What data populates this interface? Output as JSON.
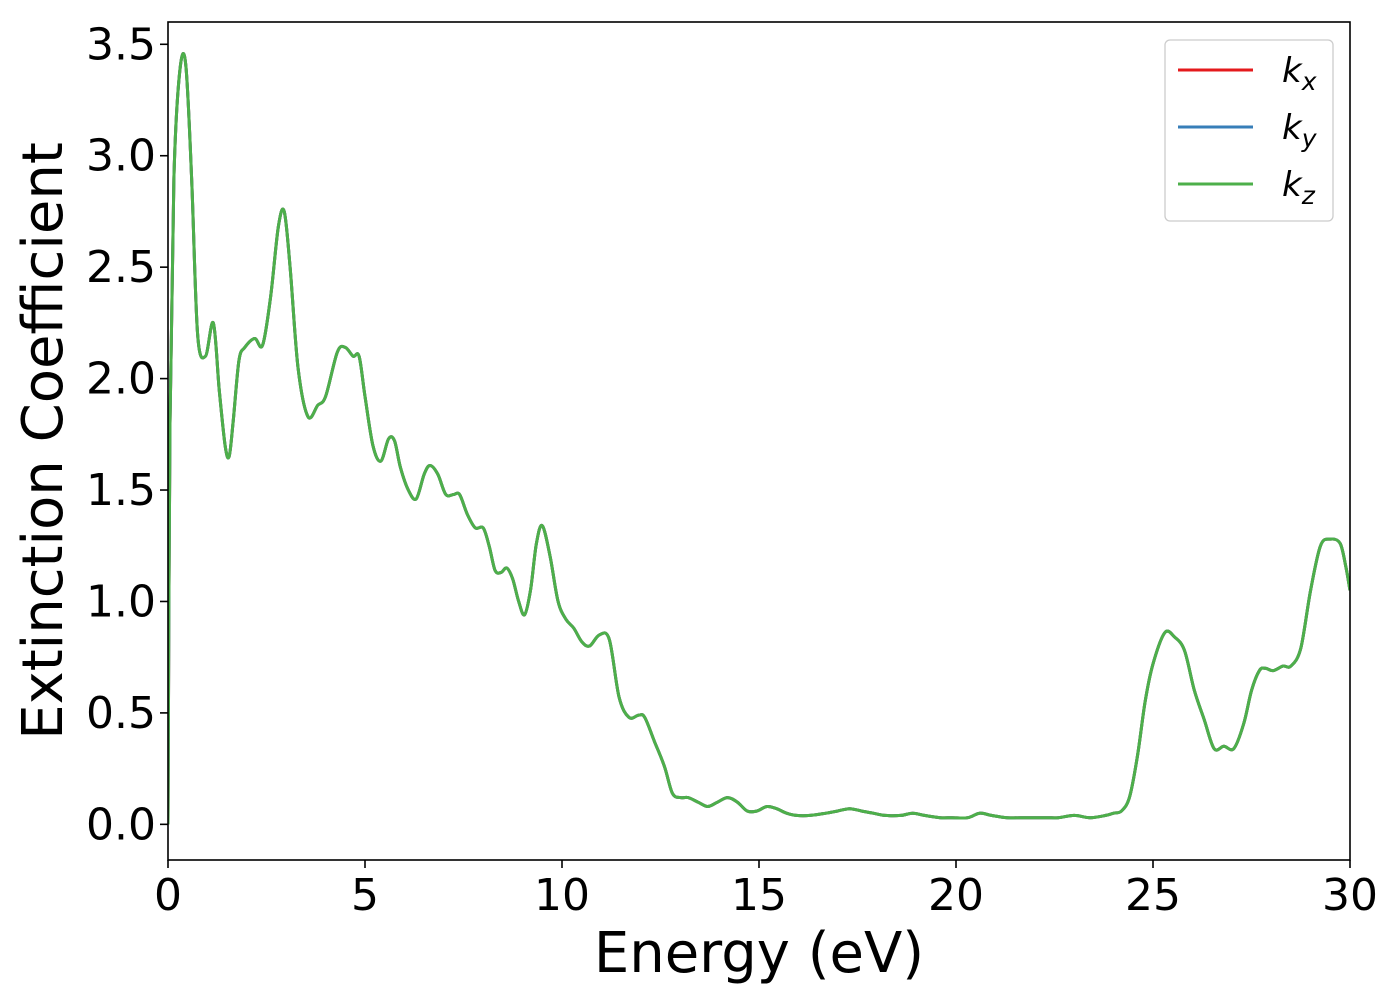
{
  "chart_data": {
    "type": "line",
    "title": "",
    "xlabel": "Energy (eV)",
    "ylabel": "Extinction Coefficient",
    "xlim": [
      0,
      30
    ],
    "ylim": [
      -0.16,
      3.6
    ],
    "xticks": [
      0,
      5,
      10,
      15,
      20,
      25,
      30
    ],
    "xtick_labels": [
      "0",
      "5",
      "10",
      "15",
      "20",
      "25",
      "30"
    ],
    "yticks": [
      0.0,
      0.5,
      1.0,
      1.5,
      2.0,
      2.5,
      3.0,
      3.5
    ],
    "ytick_labels": [
      "0.0",
      "0.5",
      "1.0",
      "1.5",
      "2.0",
      "2.5",
      "3.0",
      "3.5"
    ],
    "grid": false,
    "legend_position": "top-right",
    "series": [
      {
        "name": "k",
        "subscript": "x",
        "color": "#e41a1c",
        "x": [
          0,
          0.05,
          0.15,
          0.3,
          0.45,
          0.6,
          0.75,
          0.95,
          1.15,
          1.3,
          1.45,
          1.55,
          1.65,
          1.8,
          1.95,
          2.2,
          2.4,
          2.6,
          2.8,
          2.95,
          3.1,
          3.3,
          3.55,
          3.8,
          4.0,
          4.3,
          4.5,
          4.7,
          4.85,
          5.0,
          5.2,
          5.4,
          5.6,
          5.75,
          5.9,
          6.1,
          6.3,
          6.5,
          6.65,
          6.85,
          7.05,
          7.25,
          7.4,
          7.6,
          7.8,
          8.0,
          8.15,
          8.3,
          8.45,
          8.6,
          8.75,
          8.9,
          9.05,
          9.2,
          9.35,
          9.5,
          9.7,
          9.9,
          10.1,
          10.3,
          10.5,
          10.7,
          10.95,
          11.2,
          11.45,
          11.7,
          11.95,
          12.1,
          12.35,
          12.6,
          12.8,
          13.0,
          13.2,
          13.45,
          13.7,
          13.95,
          14.2,
          14.45,
          14.7,
          14.95,
          15.2,
          15.45,
          15.7,
          15.95,
          16.3,
          16.7,
          17.0,
          17.3,
          17.6,
          17.9,
          18.2,
          18.6,
          18.9,
          19.2,
          19.6,
          19.9,
          20.3,
          20.6,
          20.9,
          21.3,
          21.8,
          22.3,
          22.6,
          23.0,
          23.4,
          23.8,
          24.0,
          24.2,
          24.4,
          24.6,
          24.8,
          25.0,
          25.3,
          25.55,
          25.8,
          26.05,
          26.3,
          26.55,
          26.8,
          27.05,
          27.3,
          27.5,
          27.7,
          27.85,
          28.05,
          28.3,
          28.5,
          28.75,
          29.0,
          29.25,
          29.5,
          29.75,
          29.9,
          30.0
        ],
        "y": [
          0.0,
          1.8,
          2.9,
          3.38,
          3.41,
          2.9,
          2.2,
          2.1,
          2.25,
          1.95,
          1.7,
          1.65,
          1.8,
          2.08,
          2.14,
          2.18,
          2.15,
          2.36,
          2.68,
          2.75,
          2.5,
          2.05,
          1.83,
          1.88,
          1.92,
          2.12,
          2.14,
          2.1,
          2.1,
          1.92,
          1.7,
          1.63,
          1.73,
          1.72,
          1.6,
          1.5,
          1.46,
          1.57,
          1.61,
          1.57,
          1.48,
          1.48,
          1.48,
          1.39,
          1.33,
          1.33,
          1.25,
          1.14,
          1.13,
          1.15,
          1.1,
          1.0,
          0.94,
          1.05,
          1.26,
          1.34,
          1.2,
          1.0,
          0.92,
          0.88,
          0.82,
          0.8,
          0.85,
          0.83,
          0.57,
          0.48,
          0.49,
          0.48,
          0.37,
          0.26,
          0.14,
          0.12,
          0.12,
          0.1,
          0.08,
          0.1,
          0.12,
          0.1,
          0.06,
          0.06,
          0.08,
          0.07,
          0.05,
          0.04,
          0.04,
          0.05,
          0.06,
          0.07,
          0.06,
          0.05,
          0.04,
          0.04,
          0.05,
          0.04,
          0.03,
          0.03,
          0.03,
          0.05,
          0.04,
          0.03,
          0.03,
          0.03,
          0.03,
          0.04,
          0.03,
          0.04,
          0.05,
          0.06,
          0.12,
          0.3,
          0.55,
          0.72,
          0.86,
          0.84,
          0.78,
          0.6,
          0.47,
          0.34,
          0.35,
          0.34,
          0.45,
          0.6,
          0.69,
          0.7,
          0.69,
          0.71,
          0.71,
          0.79,
          1.05,
          1.25,
          1.28,
          1.26,
          1.15,
          1.05
        ]
      },
      {
        "name": "k",
        "subscript": "y",
        "color": "#377eb8",
        "x": [
          0,
          0.05,
          0.15,
          0.3,
          0.45,
          0.6,
          0.75,
          0.95,
          1.15,
          1.3,
          1.45,
          1.55,
          1.65,
          1.8,
          1.95,
          2.2,
          2.4,
          2.6,
          2.8,
          2.95,
          3.1,
          3.3,
          3.55,
          3.8,
          4.0,
          4.3,
          4.5,
          4.7,
          4.85,
          5.0,
          5.2,
          5.4,
          5.6,
          5.75,
          5.9,
          6.1,
          6.3,
          6.5,
          6.65,
          6.85,
          7.05,
          7.25,
          7.4,
          7.6,
          7.8,
          8.0,
          8.15,
          8.3,
          8.45,
          8.6,
          8.75,
          8.9,
          9.05,
          9.2,
          9.35,
          9.5,
          9.7,
          9.9,
          10.1,
          10.3,
          10.5,
          10.7,
          10.95,
          11.2,
          11.45,
          11.7,
          11.95,
          12.1,
          12.35,
          12.6,
          12.8,
          13.0,
          13.2,
          13.45,
          13.7,
          13.95,
          14.2,
          14.45,
          14.7,
          14.95,
          15.2,
          15.45,
          15.7,
          15.95,
          16.3,
          16.7,
          17.0,
          17.3,
          17.6,
          17.9,
          18.2,
          18.6,
          18.9,
          19.2,
          19.6,
          19.9,
          20.3,
          20.6,
          20.9,
          21.3,
          21.8,
          22.3,
          22.6,
          23.0,
          23.4,
          23.8,
          24.0,
          24.2,
          24.4,
          24.6,
          24.8,
          25.0,
          25.3,
          25.55,
          25.8,
          26.05,
          26.3,
          26.55,
          26.8,
          27.05,
          27.3,
          27.5,
          27.7,
          27.85,
          28.05,
          28.3,
          28.5,
          28.75,
          29.0,
          29.25,
          29.5,
          29.75,
          29.9,
          30.0
        ],
        "y": [
          0.0,
          1.8,
          2.9,
          3.38,
          3.41,
          2.9,
          2.2,
          2.1,
          2.25,
          1.95,
          1.7,
          1.65,
          1.8,
          2.08,
          2.14,
          2.18,
          2.15,
          2.36,
          2.68,
          2.75,
          2.5,
          2.05,
          1.83,
          1.88,
          1.92,
          2.12,
          2.14,
          2.1,
          2.1,
          1.92,
          1.7,
          1.63,
          1.73,
          1.72,
          1.6,
          1.5,
          1.46,
          1.57,
          1.61,
          1.57,
          1.48,
          1.48,
          1.48,
          1.39,
          1.33,
          1.33,
          1.25,
          1.14,
          1.13,
          1.15,
          1.1,
          1.0,
          0.94,
          1.05,
          1.26,
          1.34,
          1.2,
          1.0,
          0.92,
          0.88,
          0.82,
          0.8,
          0.85,
          0.83,
          0.57,
          0.48,
          0.49,
          0.48,
          0.37,
          0.26,
          0.14,
          0.12,
          0.12,
          0.1,
          0.08,
          0.1,
          0.12,
          0.1,
          0.06,
          0.06,
          0.08,
          0.07,
          0.05,
          0.04,
          0.04,
          0.05,
          0.06,
          0.07,
          0.06,
          0.05,
          0.04,
          0.04,
          0.05,
          0.04,
          0.03,
          0.03,
          0.03,
          0.05,
          0.04,
          0.03,
          0.03,
          0.03,
          0.03,
          0.04,
          0.03,
          0.04,
          0.05,
          0.06,
          0.12,
          0.3,
          0.55,
          0.72,
          0.86,
          0.84,
          0.78,
          0.6,
          0.47,
          0.34,
          0.35,
          0.34,
          0.45,
          0.6,
          0.69,
          0.7,
          0.69,
          0.71,
          0.71,
          0.79,
          1.05,
          1.25,
          1.28,
          1.26,
          1.15,
          1.05
        ]
      },
      {
        "name": "k",
        "subscript": "z",
        "color": "#4daf4a",
        "x": [
          0,
          0.05,
          0.15,
          0.3,
          0.45,
          0.6,
          0.75,
          0.95,
          1.15,
          1.3,
          1.45,
          1.55,
          1.65,
          1.8,
          1.95,
          2.2,
          2.4,
          2.6,
          2.8,
          2.95,
          3.1,
          3.3,
          3.55,
          3.8,
          4.0,
          4.3,
          4.5,
          4.7,
          4.85,
          5.0,
          5.2,
          5.4,
          5.6,
          5.75,
          5.9,
          6.1,
          6.3,
          6.5,
          6.65,
          6.85,
          7.05,
          7.25,
          7.4,
          7.6,
          7.8,
          8.0,
          8.15,
          8.3,
          8.45,
          8.6,
          8.75,
          8.9,
          9.05,
          9.2,
          9.35,
          9.5,
          9.7,
          9.9,
          10.1,
          10.3,
          10.5,
          10.7,
          10.95,
          11.2,
          11.45,
          11.7,
          11.95,
          12.1,
          12.35,
          12.6,
          12.8,
          13.0,
          13.2,
          13.45,
          13.7,
          13.95,
          14.2,
          14.45,
          14.7,
          14.95,
          15.2,
          15.45,
          15.7,
          15.95,
          16.3,
          16.7,
          17.0,
          17.3,
          17.6,
          17.9,
          18.2,
          18.6,
          18.9,
          19.2,
          19.6,
          19.9,
          20.3,
          20.6,
          20.9,
          21.3,
          21.8,
          22.3,
          22.6,
          23.0,
          23.4,
          23.8,
          24.0,
          24.2,
          24.4,
          24.6,
          24.8,
          25.0,
          25.3,
          25.55,
          25.8,
          26.05,
          26.3,
          26.55,
          26.8,
          27.05,
          27.3,
          27.5,
          27.7,
          27.85,
          28.05,
          28.3,
          28.5,
          28.75,
          29.0,
          29.25,
          29.5,
          29.75,
          29.9,
          30.0
        ],
        "y": [
          0.0,
          1.8,
          2.9,
          3.38,
          3.41,
          2.9,
          2.2,
          2.1,
          2.25,
          1.95,
          1.7,
          1.65,
          1.8,
          2.08,
          2.14,
          2.18,
          2.15,
          2.36,
          2.68,
          2.75,
          2.5,
          2.05,
          1.83,
          1.88,
          1.92,
          2.12,
          2.14,
          2.1,
          2.1,
          1.92,
          1.7,
          1.63,
          1.73,
          1.72,
          1.6,
          1.5,
          1.46,
          1.57,
          1.61,
          1.57,
          1.48,
          1.48,
          1.48,
          1.39,
          1.33,
          1.33,
          1.25,
          1.14,
          1.13,
          1.15,
          1.1,
          1.0,
          0.94,
          1.05,
          1.26,
          1.34,
          1.2,
          1.0,
          0.92,
          0.88,
          0.82,
          0.8,
          0.85,
          0.83,
          0.57,
          0.48,
          0.49,
          0.48,
          0.37,
          0.26,
          0.14,
          0.12,
          0.12,
          0.1,
          0.08,
          0.1,
          0.12,
          0.1,
          0.06,
          0.06,
          0.08,
          0.07,
          0.05,
          0.04,
          0.04,
          0.05,
          0.06,
          0.07,
          0.06,
          0.05,
          0.04,
          0.04,
          0.05,
          0.04,
          0.03,
          0.03,
          0.03,
          0.05,
          0.04,
          0.03,
          0.03,
          0.03,
          0.03,
          0.04,
          0.03,
          0.04,
          0.05,
          0.06,
          0.12,
          0.3,
          0.55,
          0.72,
          0.86,
          0.84,
          0.78,
          0.6,
          0.47,
          0.34,
          0.35,
          0.34,
          0.45,
          0.6,
          0.69,
          0.7,
          0.69,
          0.71,
          0.71,
          0.79,
          1.05,
          1.25,
          1.28,
          1.26,
          1.15,
          1.05
        ]
      }
    ]
  }
}
